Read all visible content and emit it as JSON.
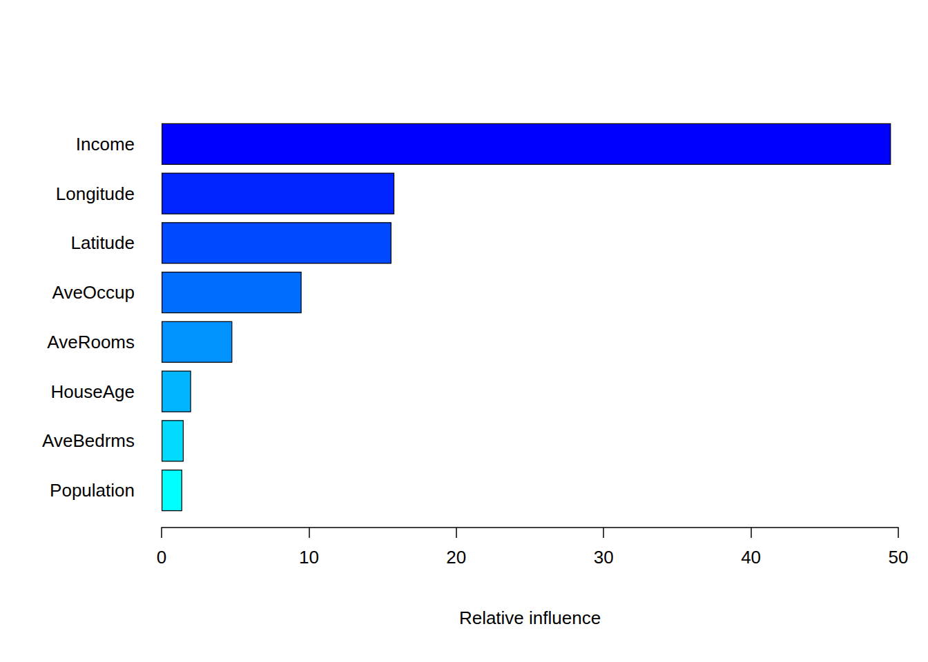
{
  "chart_data": {
    "type": "bar",
    "orientation": "horizontal",
    "categories": [
      "Income",
      "Longitude",
      "Latitude",
      "AveOccup",
      "AveRooms",
      "HouseAge",
      "AveBedrms",
      "Population"
    ],
    "values": [
      49.5,
      15.8,
      15.6,
      9.5,
      4.8,
      2.0,
      1.5,
      1.4
    ],
    "colors": [
      "#0000FF",
      "#0024FF",
      "#0049FF",
      "#006DFF",
      "#0092FF",
      "#00B6FF",
      "#00DBFF",
      "#00FFFF"
    ],
    "x_label": "Relative influence",
    "xlim": [
      0,
      50
    ],
    "xticks": [
      0,
      10,
      20,
      30,
      40,
      50
    ],
    "grid": false
  }
}
